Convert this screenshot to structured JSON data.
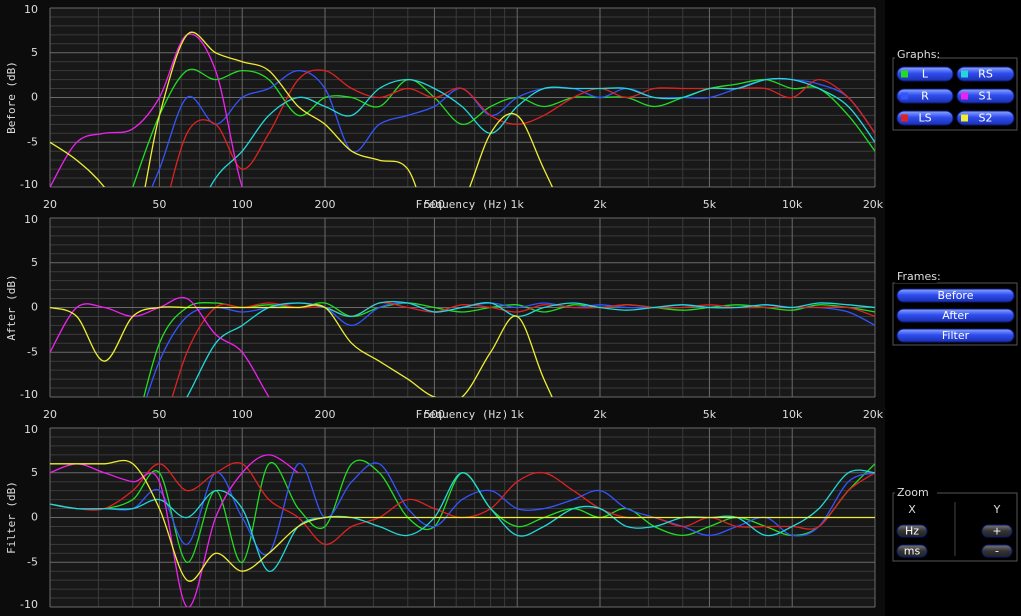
{
  "chart_data": [
    {
      "type": "line",
      "ylabel": "Before (dB)",
      "xlabel": "Frequency (Hz)",
      "xscale": "log",
      "grid": true,
      "x": [
        20,
        25,
        31.5,
        40,
        50,
        63,
        80,
        100,
        125,
        160,
        200,
        250,
        315,
        400,
        500,
        630,
        800,
        1000,
        1250,
        1600,
        2000,
        2500,
        3150,
        4000,
        5000,
        6300,
        8000,
        10000,
        12500,
        16000,
        20000
      ],
      "xlim": [
        20,
        20000
      ],
      "ylim": [
        -10,
        10
      ],
      "xticks": [
        20,
        50,
        100,
        200,
        500,
        {
          "value": 1000,
          "label": "1k"
        },
        {
          "value": 2000,
          "label": "2k"
        },
        {
          "value": 5000,
          "label": "5k"
        },
        {
          "value": 10000,
          "label": "10k"
        },
        {
          "value": 20000,
          "label": "20k"
        }
      ],
      "xminorticks": [
        30,
        40,
        60,
        70,
        80,
        90,
        300,
        400,
        600,
        700,
        800,
        900,
        3000,
        4000,
        6000,
        7000,
        8000,
        9000
      ],
      "yticks": [
        -10,
        -5,
        0,
        5,
        10
      ],
      "yminorticks": [
        -9,
        -8,
        -7,
        -6,
        -4,
        -3,
        -2,
        -1,
        1,
        2,
        3,
        4,
        6,
        7,
        8,
        9
      ],
      "series": [
        {
          "name": "L",
          "color": "#22dd22",
          "values": [
            null,
            null,
            null,
            -10,
            -2,
            3,
            2,
            3,
            2,
            -2,
            0,
            0,
            -1,
            2,
            0,
            -3,
            -1,
            0,
            -1,
            0,
            0,
            0,
            -1,
            0,
            1,
            1.5,
            2,
            1,
            1,
            -2,
            -6
          ]
        },
        {
          "name": "R",
          "color": "#3355ff",
          "values": [
            null,
            null,
            null,
            -15,
            -8,
            0,
            -3,
            0,
            1,
            3,
            1,
            -6,
            -3,
            -2,
            -1,
            1,
            -2,
            0,
            1,
            1,
            0,
            1,
            0,
            0,
            0,
            1,
            2,
            2,
            1.5,
            0,
            -4
          ]
        },
        {
          "name": "LS",
          "color": "#e02222",
          "values": [
            null,
            null,
            null,
            null,
            -15,
            -4,
            -3,
            -8,
            -4,
            2,
            3,
            1,
            0,
            1,
            0,
            1,
            -2,
            -3,
            -2,
            0,
            1,
            0,
            1,
            1,
            1,
            1,
            1,
            0,
            2,
            0,
            -4
          ]
        },
        {
          "name": "RS",
          "color": "#22d8d8",
          "values": [
            null,
            null,
            null,
            null,
            null,
            -15,
            -9,
            -6,
            -2,
            0,
            -1,
            -2,
            1,
            2,
            1,
            -1,
            -4,
            -1,
            1,
            1,
            1,
            1,
            0,
            0,
            1,
            1,
            2,
            2,
            1,
            -1,
            -5
          ]
        },
        {
          "name": "S1",
          "color": "#ee22ee",
          "values": [
            -10,
            -5,
            -4,
            -3.5,
            0,
            7,
            3,
            -10,
            -15,
            null,
            null,
            null,
            null,
            null,
            null,
            null,
            null,
            null,
            null,
            null,
            null,
            null,
            null,
            null,
            null,
            null,
            null,
            null,
            null,
            null,
            null
          ]
        },
        {
          "name": "S2",
          "color": "#eeee33",
          "values": [
            -5,
            -7,
            -10,
            -15,
            -2,
            7,
            5,
            4,
            3,
            -1,
            -3,
            -6,
            -7,
            -8,
            -15,
            -12,
            -4,
            -2,
            -8,
            -15,
            null,
            null,
            null,
            null,
            null,
            null,
            null,
            null,
            null,
            null,
            null
          ]
        }
      ]
    },
    {
      "type": "line",
      "ylabel": "After (dB)",
      "xlabel": "Frequency (Hz)",
      "xscale": "log",
      "grid": true,
      "x": [
        20,
        25,
        31.5,
        40,
        50,
        63,
        80,
        100,
        125,
        160,
        200,
        250,
        315,
        400,
        500,
        630,
        800,
        1000,
        1250,
        1600,
        2000,
        2500,
        3150,
        4000,
        5000,
        6300,
        8000,
        10000,
        12500,
        16000,
        20000
      ],
      "xlim": [
        20,
        20000
      ],
      "ylim": [
        -10,
        10
      ],
      "xticks": [
        20,
        50,
        100,
        200,
        500,
        {
          "value": 1000,
          "label": "1k"
        },
        {
          "value": 2000,
          "label": "2k"
        },
        {
          "value": 5000,
          "label": "5k"
        },
        {
          "value": 10000,
          "label": "10k"
        },
        {
          "value": 20000,
          "label": "20k"
        }
      ],
      "xminorticks": [
        30,
        40,
        60,
        70,
        80,
        90,
        300,
        400,
        600,
        700,
        800,
        900,
        3000,
        4000,
        6000,
        7000,
        8000,
        9000
      ],
      "yticks": [
        -10,
        -5,
        0,
        5,
        10
      ],
      "yminorticks": [
        -9,
        -8,
        -7,
        -6,
        -4,
        -3,
        -2,
        -1,
        1,
        2,
        3,
        4,
        6,
        7,
        8,
        9
      ],
      "series": [
        {
          "name": "L",
          "color": "#22dd22",
          "values": [
            null,
            null,
            null,
            -15,
            -4,
            0,
            0.5,
            0,
            0.3,
            0,
            0.5,
            -1,
            0,
            0.5,
            0,
            -0.5,
            0,
            0.3,
            -0.5,
            0.3,
            0,
            0.3,
            0,
            -0.3,
            0,
            0.3,
            0,
            -0.3,
            0.3,
            0,
            -0.5
          ]
        },
        {
          "name": "R",
          "color": "#3355ff",
          "values": [
            null,
            null,
            null,
            -15,
            -6,
            -1,
            0,
            -0.5,
            0,
            0.5,
            0,
            -2,
            0,
            0.5,
            -0.5,
            0,
            0.5,
            0,
            0.5,
            0,
            0.3,
            0,
            0,
            0.3,
            0,
            0,
            0.3,
            0,
            0,
            -0.5,
            -2
          ]
        },
        {
          "name": "LS",
          "color": "#e02222",
          "values": [
            null,
            null,
            null,
            null,
            -15,
            -5,
            0,
            0,
            0.5,
            0,
            0,
            -1,
            0.5,
            0,
            -0.5,
            0.3,
            0,
            -0.5,
            0.3,
            0,
            0,
            0.3,
            0,
            0,
            0.3,
            0,
            0,
            0,
            0,
            0,
            -1
          ]
        },
        {
          "name": "RS",
          "color": "#22d8d8",
          "values": [
            null,
            null,
            null,
            null,
            -15,
            -10,
            -4,
            -2,
            0,
            0.5,
            0,
            -1,
            0.5,
            0.5,
            -0.5,
            0,
            0.5,
            -1,
            0,
            0.5,
            0,
            -0.3,
            0,
            0.3,
            0,
            0,
            0.3,
            0,
            0.5,
            0.3,
            0
          ]
        },
        {
          "name": "S1",
          "color": "#ee22ee",
          "values": [
            -5,
            0,
            0,
            -1,
            0,
            1,
            -3,
            -5,
            -10,
            -15,
            null,
            null,
            null,
            null,
            null,
            null,
            null,
            null,
            null,
            null,
            null,
            null,
            null,
            null,
            null,
            null,
            null,
            null,
            null,
            null,
            null
          ]
        },
        {
          "name": "S2",
          "color": "#eeee33",
          "values": [
            0,
            -1,
            -6,
            -1,
            0,
            0,
            0,
            0,
            0,
            0,
            0,
            -4,
            -6,
            -8,
            -10,
            -10,
            -5,
            -1,
            -8,
            -15,
            null,
            null,
            null,
            null,
            null,
            null,
            null,
            null,
            null,
            null,
            null
          ]
        }
      ]
    },
    {
      "type": "line",
      "ylabel": "Filter (dB)",
      "xlabel": "Frequency (Hz)",
      "xscale": "log",
      "grid": true,
      "x": [
        20,
        25,
        31.5,
        40,
        50,
        63,
        80,
        100,
        125,
        160,
        200,
        250,
        315,
        400,
        500,
        630,
        800,
        1000,
        1250,
        1600,
        2000,
        2500,
        3150,
        4000,
        5000,
        6300,
        8000,
        10000,
        12500,
        16000,
        20000
      ],
      "xlim": [
        20,
        20000
      ],
      "ylim": [
        -10,
        10
      ],
      "xticks": [
        20,
        50,
        100,
        200,
        500,
        {
          "value": 1000,
          "label": "1k"
        },
        {
          "value": 2000,
          "label": "2k"
        },
        {
          "value": 5000,
          "label": "5k"
        },
        {
          "value": 10000,
          "label": "10k"
        },
        {
          "value": 20000,
          "label": "20k"
        }
      ],
      "xminorticks": [
        30,
        40,
        60,
        70,
        80,
        90,
        300,
        400,
        600,
        700,
        800,
        900,
        3000,
        4000,
        6000,
        7000,
        8000,
        9000
      ],
      "yticks": [
        -10,
        -5,
        0,
        5,
        10
      ],
      "yminorticks": [
        -9,
        -8,
        -7,
        -6,
        -4,
        -3,
        -2,
        -1,
        1,
        2,
        3,
        4,
        6,
        7,
        8,
        9
      ],
      "series": [
        {
          "name": "L",
          "color": "#22dd22",
          "values": [
            1.5,
            1,
            1,
            2,
            5,
            -5,
            3,
            -5,
            6,
            1,
            -1,
            6,
            5,
            0,
            -1,
            5,
            1,
            -1,
            0,
            1,
            0,
            1,
            -1,
            -2,
            -1,
            0,
            -1,
            -2,
            -1,
            3,
            6
          ]
        },
        {
          "name": "R",
          "color": "#3355ff",
          "values": [
            1.5,
            1,
            1,
            1,
            3,
            -3,
            5,
            0,
            -4,
            6,
            0,
            4,
            6,
            1,
            -1,
            2,
            3,
            1,
            1,
            2,
            3,
            1,
            0,
            -1,
            -2,
            -1,
            0,
            -2,
            -1,
            4,
            5
          ]
        },
        {
          "name": "LS",
          "color": "#e02222",
          "values": [
            1.5,
            1,
            1,
            3,
            6,
            3,
            5,
            6,
            2,
            0,
            -3,
            -1,
            0,
            2,
            1,
            0,
            1,
            4,
            5,
            3,
            1,
            0,
            0,
            -1,
            0,
            -1,
            -1,
            -1,
            -1,
            3,
            5
          ]
        },
        {
          "name": "RS",
          "color": "#22d8d8",
          "values": [
            1.5,
            1,
            1,
            1,
            2,
            0,
            3,
            1,
            -6,
            -1,
            0,
            0,
            -1,
            -2,
            0,
            5,
            1,
            -2,
            -1,
            1,
            1,
            -1,
            -1,
            0,
            0,
            0,
            -2,
            -1,
            1,
            5,
            5
          ]
        },
        {
          "name": "S1",
          "color": "#ee22ee",
          "values": [
            5,
            6,
            5,
            4,
            4,
            -10,
            0,
            5,
            7,
            5,
            null,
            null,
            null,
            null,
            null,
            null,
            null,
            null,
            null,
            null,
            null,
            null,
            null,
            null,
            null,
            null,
            null,
            null,
            null,
            null,
            null
          ]
        },
        {
          "name": "S2",
          "color": "#eeee33",
          "values": [
            6,
            6,
            6,
            6,
            1,
            -7,
            -4,
            -6,
            -4,
            -1,
            0,
            0,
            0,
            0,
            0,
            0,
            0,
            0,
            0,
            0,
            0,
            0,
            0,
            0,
            0,
            0,
            0,
            0,
            0,
            0,
            0
          ]
        }
      ]
    }
  ],
  "panel": {
    "graphs": {
      "title": "Graphs:"
    },
    "frames": {
      "title": "Frames:",
      "buttons": [
        "Before",
        "After",
        "Filter"
      ]
    },
    "zoom": {
      "title": "Zoom",
      "x": "X",
      "y": "Y",
      "hz": "Hz",
      "ms": "ms",
      "plus": "+",
      "minus": "-"
    }
  }
}
